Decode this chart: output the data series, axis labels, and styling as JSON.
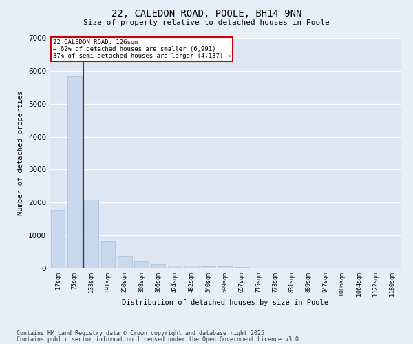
{
  "title": "22, CALEDON ROAD, POOLE, BH14 9NN",
  "subtitle": "Size of property relative to detached houses in Poole",
  "xlabel": "Distribution of detached houses by size in Poole",
  "ylabel": "Number of detached properties",
  "bar_color": "#c9d9ed",
  "bar_edge_color": "#a8bfd8",
  "background_color": "#dde6f2",
  "grid_color": "#ffffff",
  "fig_background": "#e8eef7",
  "vline_color": "#cc0000",
  "annotation_text": "22 CALEDON ROAD: 126sqm\n← 62% of detached houses are smaller (6,991)\n37% of semi-detached houses are larger (4,137) →",
  "annotation_box_color": "#cc0000",
  "footer_line1": "Contains HM Land Registry data © Crown copyright and database right 2025.",
  "footer_line2": "Contains public sector information licensed under the Open Government Licence v3.0.",
  "categories": [
    "17sqm",
    "75sqm",
    "133sqm",
    "191sqm",
    "250sqm",
    "308sqm",
    "366sqm",
    "424sqm",
    "482sqm",
    "540sqm",
    "599sqm",
    "657sqm",
    "715sqm",
    "773sqm",
    "831sqm",
    "889sqm",
    "947sqm",
    "1006sqm",
    "1064sqm",
    "1122sqm",
    "1180sqm"
  ],
  "values": [
    1780,
    5820,
    2090,
    820,
    370,
    210,
    120,
    85,
    75,
    65,
    55,
    40,
    20,
    10,
    8,
    6,
    4,
    3,
    2,
    2,
    1
  ],
  "ylim": [
    0,
    7000
  ],
  "yticks": [
    0,
    1000,
    2000,
    3000,
    4000,
    5000,
    6000,
    7000
  ]
}
